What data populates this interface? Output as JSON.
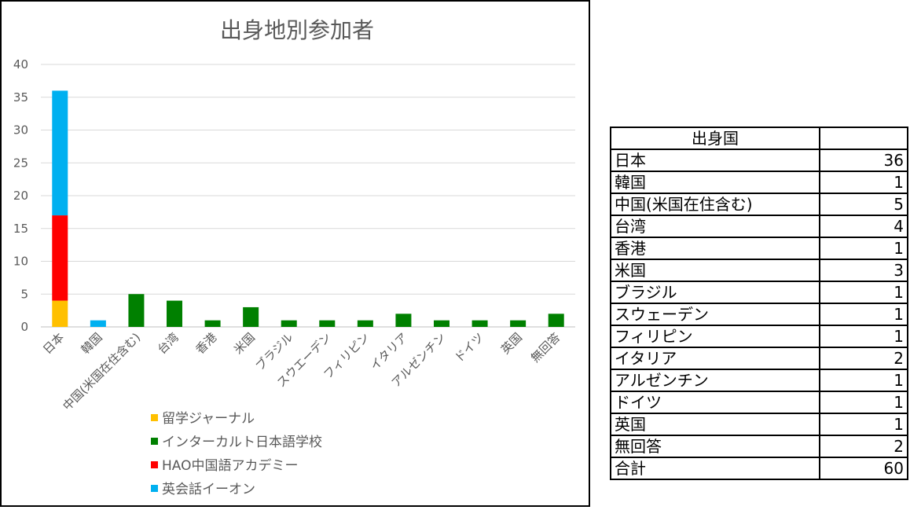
{
  "chart_data": {
    "type": "bar",
    "stacked": true,
    "title": "出身地別参加者",
    "ylim": [
      0,
      40
    ],
    "yticks": [
      0,
      5,
      10,
      15,
      20,
      25,
      30,
      35,
      40
    ],
    "grid": true,
    "legend_position": "bottom-left",
    "categories": [
      "日本",
      "韓国",
      "中国(米国在住含む)",
      "台湾",
      "香港",
      "米国",
      "ブラジル",
      "スウエーデン",
      "フィリピン",
      "イタリア",
      "アルゼンチン",
      "ドイツ",
      "英国",
      "無回答"
    ],
    "series": [
      {
        "name": "留学ジャーナル",
        "color": "#ffc000",
        "values": [
          4,
          0,
          0,
          0,
          0,
          0,
          0,
          0,
          0,
          0,
          0,
          0,
          0,
          0
        ]
      },
      {
        "name": "インターカルト日本語学校",
        "color": "#008000",
        "values": [
          0,
          0,
          5,
          4,
          1,
          3,
          1,
          1,
          1,
          2,
          1,
          1,
          1,
          2
        ]
      },
      {
        "name": "HAO中国語アカデミー",
        "color": "#ff0000",
        "values": [
          13,
          0,
          0,
          0,
          0,
          0,
          0,
          0,
          0,
          0,
          0,
          0,
          0,
          0
        ]
      },
      {
        "name": "英会話イーオン",
        "color": "#00b0f0",
        "values": [
          19,
          1,
          0,
          0,
          0,
          0,
          0,
          0,
          0,
          0,
          0,
          0,
          0,
          0
        ]
      }
    ]
  },
  "table": {
    "header": "出身国",
    "rows": [
      {
        "country": "日本",
        "count": "36"
      },
      {
        "country": "韓国",
        "count": "1"
      },
      {
        "country": "中国(米国在住含む)",
        "count": "5"
      },
      {
        "country": "台湾",
        "count": "4"
      },
      {
        "country": "香港",
        "count": "1"
      },
      {
        "country": "米国",
        "count": "3"
      },
      {
        "country": "ブラジル",
        "count": "1"
      },
      {
        "country": "スウェーデン",
        "count": "1"
      },
      {
        "country": "フィリピン",
        "count": "1"
      },
      {
        "country": "イタリア",
        "count": "2"
      },
      {
        "country": "アルゼンチン",
        "count": "1"
      },
      {
        "country": "ドイツ",
        "count": "1"
      },
      {
        "country": "英国",
        "count": "1"
      },
      {
        "country": "無回答",
        "count": "2"
      }
    ],
    "total_label": "合計",
    "total_value": "60"
  }
}
